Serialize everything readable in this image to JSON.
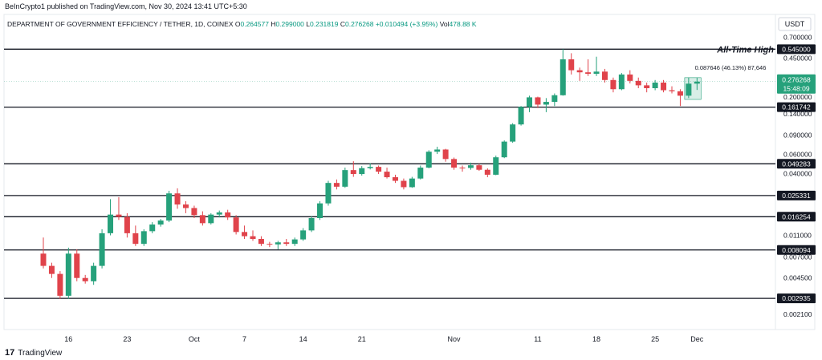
{
  "header": {
    "published": "BeInCrypto1 published on TradingView.com, Nov 30, 2024 13:41 UTC+5:30",
    "symbol": "DEPARTMENT OF GOVERNMENT EFFICIENCY / TETHER, 1D, COINEX",
    "o_label": "O",
    "o": "0.264577",
    "h_label": "H",
    "h": "0.299000",
    "l_label": "L",
    "l": "0.231819",
    "c_label": "C",
    "c": "0.276268",
    "change": "+0.010494 (+3.95%)",
    "vol_label": "Vol",
    "vol": "478.88 K"
  },
  "currency": "USDT",
  "ath_label": "All-Time High",
  "measure_label": "0.087646 (46.13%) 87,646",
  "current_price": "0.276268",
  "countdown": "15:48:09",
  "footer_logo": "TradingView",
  "colors": {
    "up": "#26a17b",
    "down": "#e0434b",
    "level": "#131722",
    "price_line": "#26a17b"
  },
  "chart_data": {
    "type": "candlestick",
    "y_scale": "log",
    "ylim": [
      0.0019,
      0.78
    ],
    "y_ticks": [
      {
        "value": 0.7,
        "label": "0.700000"
      },
      {
        "value": 0.45,
        "label": "0.450000"
      },
      {
        "value": 0.3,
        "label": "0.300000"
      },
      {
        "value": 0.2,
        "label": "0.200000"
      },
      {
        "value": 0.14,
        "label": "0.140000"
      },
      {
        "value": 0.09,
        "label": "0.090000"
      },
      {
        "value": 0.06,
        "label": "0.060000"
      },
      {
        "value": 0.04,
        "label": "0.040000"
      },
      {
        "value": 0.011,
        "label": "0.011000"
      },
      {
        "value": 0.007,
        "label": "0.007000"
      },
      {
        "value": 0.0045,
        "label": "0.004500"
      },
      {
        "value": 0.0021,
        "label": "0.002100"
      }
    ],
    "levels": [
      {
        "value": 0.545,
        "label": "0.545000"
      },
      {
        "value": 0.161742,
        "label": "0.161742"
      },
      {
        "value": 0.049283,
        "label": "0.049283"
      },
      {
        "value": 0.025331,
        "label": "0.025331"
      },
      {
        "value": 0.016254,
        "label": "0.016254"
      },
      {
        "value": 0.008094,
        "label": "0.008094"
      },
      {
        "value": 0.002935,
        "label": "0.002935"
      }
    ],
    "x_ticks": [
      {
        "index": 3,
        "label": "16"
      },
      {
        "index": 10,
        "label": "23"
      },
      {
        "index": 18,
        "label": "Oct"
      },
      {
        "index": 24,
        "label": "7"
      },
      {
        "index": 31,
        "label": "14"
      },
      {
        "index": 38,
        "label": "21"
      },
      {
        "index": 49,
        "label": "Nov"
      },
      {
        "index": 59,
        "label": "11"
      },
      {
        "index": 66,
        "label": "18"
      },
      {
        "index": 73,
        "label": "25"
      },
      {
        "index": 78,
        "label": "Dec"
      }
    ],
    "candles": [
      {
        "o": 0.0075,
        "h": 0.0105,
        "l": 0.0055,
        "c": 0.0058
      },
      {
        "o": 0.0058,
        "h": 0.0062,
        "l": 0.0045,
        "c": 0.0049
      },
      {
        "o": 0.0049,
        "h": 0.0052,
        "l": 0.0029,
        "c": 0.0031
      },
      {
        "o": 0.0031,
        "h": 0.0085,
        "l": 0.0029,
        "c": 0.0075
      },
      {
        "o": 0.0075,
        "h": 0.0082,
        "l": 0.0042,
        "c": 0.0045
      },
      {
        "o": 0.0045,
        "h": 0.0048,
        "l": 0.004,
        "c": 0.0042
      },
      {
        "o": 0.0042,
        "h": 0.0062,
        "l": 0.0039,
        "c": 0.0058
      },
      {
        "o": 0.0058,
        "h": 0.0125,
        "l": 0.0055,
        "c": 0.0115
      },
      {
        "o": 0.0115,
        "h": 0.0235,
        "l": 0.011,
        "c": 0.017
      },
      {
        "o": 0.017,
        "h": 0.0245,
        "l": 0.0152,
        "c": 0.0162
      },
      {
        "o": 0.0162,
        "h": 0.0175,
        "l": 0.0105,
        "c": 0.0115
      },
      {
        "o": 0.0115,
        "h": 0.0135,
        "l": 0.0088,
        "c": 0.0092
      },
      {
        "o": 0.0092,
        "h": 0.0125,
        "l": 0.0088,
        "c": 0.012
      },
      {
        "o": 0.012,
        "h": 0.0145,
        "l": 0.0115,
        "c": 0.0138
      },
      {
        "o": 0.0138,
        "h": 0.0155,
        "l": 0.0132,
        "c": 0.015
      },
      {
        "o": 0.015,
        "h": 0.028,
        "l": 0.0145,
        "c": 0.0265
      },
      {
        "o": 0.0265,
        "h": 0.0295,
        "l": 0.0192,
        "c": 0.021
      },
      {
        "o": 0.021,
        "h": 0.0225,
        "l": 0.0175,
        "c": 0.0195
      },
      {
        "o": 0.0195,
        "h": 0.0205,
        "l": 0.0158,
        "c": 0.0168
      },
      {
        "o": 0.0168,
        "h": 0.0182,
        "l": 0.0135,
        "c": 0.0142
      },
      {
        "o": 0.0142,
        "h": 0.0175,
        "l": 0.0138,
        "c": 0.017
      },
      {
        "o": 0.017,
        "h": 0.0185,
        "l": 0.016,
        "c": 0.0178
      },
      {
        "o": 0.0178,
        "h": 0.0188,
        "l": 0.0152,
        "c": 0.016
      },
      {
        "o": 0.016,
        "h": 0.0168,
        "l": 0.0112,
        "c": 0.0118
      },
      {
        "o": 0.0118,
        "h": 0.0135,
        "l": 0.0102,
        "c": 0.0108
      },
      {
        "o": 0.0108,
        "h": 0.0122,
        "l": 0.0098,
        "c": 0.0102
      },
      {
        "o": 0.0102,
        "h": 0.0108,
        "l": 0.0088,
        "c": 0.0092
      },
      {
        "o": 0.0092,
        "h": 0.0096,
        "l": 0.0086,
        "c": 0.0091
      },
      {
        "o": 0.0091,
        "h": 0.0098,
        "l": 0.0082,
        "c": 0.0095
      },
      {
        "o": 0.0095,
        "h": 0.0102,
        "l": 0.0088,
        "c": 0.0092
      },
      {
        "o": 0.0092,
        "h": 0.0105,
        "l": 0.0088,
        "c": 0.0101
      },
      {
        "o": 0.0101,
        "h": 0.0128,
        "l": 0.0098,
        "c": 0.0122
      },
      {
        "o": 0.0122,
        "h": 0.0165,
        "l": 0.0118,
        "c": 0.0158
      },
      {
        "o": 0.0158,
        "h": 0.0225,
        "l": 0.0152,
        "c": 0.0215
      },
      {
        "o": 0.0215,
        "h": 0.0345,
        "l": 0.0205,
        "c": 0.033
      },
      {
        "o": 0.033,
        "h": 0.0355,
        "l": 0.0288,
        "c": 0.0305
      },
      {
        "o": 0.0305,
        "h": 0.0455,
        "l": 0.0298,
        "c": 0.0432
      },
      {
        "o": 0.0432,
        "h": 0.052,
        "l": 0.0375,
        "c": 0.0398
      },
      {
        "o": 0.0398,
        "h": 0.047,
        "l": 0.0385,
        "c": 0.045
      },
      {
        "o": 0.045,
        "h": 0.0498,
        "l": 0.0438,
        "c": 0.0462
      },
      {
        "o": 0.0462,
        "h": 0.0475,
        "l": 0.0398,
        "c": 0.0418
      },
      {
        "o": 0.0418,
        "h": 0.0455,
        "l": 0.0362,
        "c": 0.0372
      },
      {
        "o": 0.0372,
        "h": 0.0392,
        "l": 0.033,
        "c": 0.0345
      },
      {
        "o": 0.0345,
        "h": 0.0362,
        "l": 0.0288,
        "c": 0.0302
      },
      {
        "o": 0.0302,
        "h": 0.0375,
        "l": 0.0298,
        "c": 0.0362
      },
      {
        "o": 0.0362,
        "h": 0.0475,
        "l": 0.0355,
        "c": 0.0455
      },
      {
        "o": 0.0455,
        "h": 0.0655,
        "l": 0.0448,
        "c": 0.0635
      },
      {
        "o": 0.0635,
        "h": 0.0705,
        "l": 0.0605,
        "c": 0.0665
      },
      {
        "o": 0.0665,
        "h": 0.0675,
        "l": 0.0515,
        "c": 0.0545
      },
      {
        "o": 0.0545,
        "h": 0.0562,
        "l": 0.0435,
        "c": 0.0455
      },
      {
        "o": 0.0455,
        "h": 0.0475,
        "l": 0.0418,
        "c": 0.0452
      },
      {
        "o": 0.0452,
        "h": 0.0505,
        "l": 0.0435,
        "c": 0.0478
      },
      {
        "o": 0.0478,
        "h": 0.0492,
        "l": 0.0425,
        "c": 0.0435
      },
      {
        "o": 0.0435,
        "h": 0.0448,
        "l": 0.0372,
        "c": 0.0392
      },
      {
        "o": 0.0392,
        "h": 0.0585,
        "l": 0.0388,
        "c": 0.0565
      },
      {
        "o": 0.0565,
        "h": 0.0805,
        "l": 0.0555,
        "c": 0.0785
      },
      {
        "o": 0.0785,
        "h": 0.1155,
        "l": 0.0765,
        "c": 0.1125
      },
      {
        "o": 0.1125,
        "h": 0.1655,
        "l": 0.1098,
        "c": 0.1625
      },
      {
        "o": 0.1625,
        "h": 0.2055,
        "l": 0.1455,
        "c": 0.1985
      },
      {
        "o": 0.1985,
        "h": 0.2015,
        "l": 0.1585,
        "c": 0.1705
      },
      {
        "o": 0.1705,
        "h": 0.1955,
        "l": 0.1455,
        "c": 0.1805
      },
      {
        "o": 0.1805,
        "h": 0.2155,
        "l": 0.1655,
        "c": 0.2075
      },
      {
        "o": 0.2075,
        "h": 0.5455,
        "l": 0.2055,
        "c": 0.4405
      },
      {
        "o": 0.4405,
        "h": 0.5005,
        "l": 0.3205,
        "c": 0.3505
      },
      {
        "o": 0.3505,
        "h": 0.3705,
        "l": 0.2805,
        "c": 0.3355
      },
      {
        "o": 0.3355,
        "h": 0.4405,
        "l": 0.3105,
        "c": 0.3255
      },
      {
        "o": 0.3255,
        "h": 0.4655,
        "l": 0.3105,
        "c": 0.3405
      },
      {
        "o": 0.3405,
        "h": 0.3605,
        "l": 0.2705,
        "c": 0.2855
      },
      {
        "o": 0.2855,
        "h": 0.3005,
        "l": 0.2205,
        "c": 0.2355
      },
      {
        "o": 0.2355,
        "h": 0.3305,
        "l": 0.2305,
        "c": 0.3205
      },
      {
        "o": 0.3205,
        "h": 0.3505,
        "l": 0.2655,
        "c": 0.2805
      },
      {
        "o": 0.2805,
        "h": 0.3005,
        "l": 0.2405,
        "c": 0.2555
      },
      {
        "o": 0.2555,
        "h": 0.2705,
        "l": 0.2205,
        "c": 0.2405
      },
      {
        "o": 0.2405,
        "h": 0.2855,
        "l": 0.2305,
        "c": 0.2705
      },
      {
        "o": 0.2705,
        "h": 0.2855,
        "l": 0.2205,
        "c": 0.2305
      },
      {
        "o": 0.2305,
        "h": 0.2505,
        "l": 0.2155,
        "c": 0.2255
      },
      {
        "o": 0.2255,
        "h": 0.2355,
        "l": 0.1655,
        "c": 0.2055
      },
      {
        "o": 0.2055,
        "h": 0.3005,
        "l": 0.1955,
        "c": 0.2645
      },
      {
        "o": 0.264577,
        "h": 0.299,
        "l": 0.231819,
        "c": 0.276268
      }
    ]
  }
}
